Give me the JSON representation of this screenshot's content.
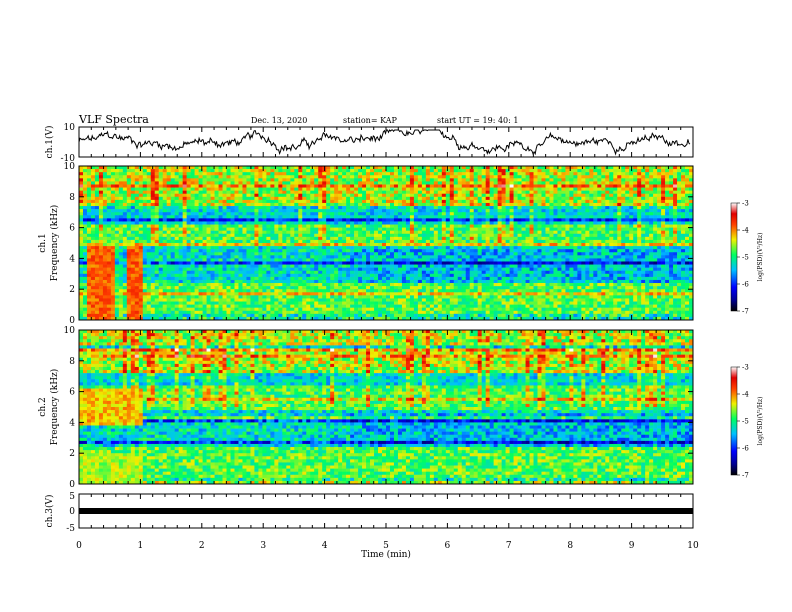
{
  "header": {
    "title": "VLF Spectra",
    "date": "Dec. 13, 2020",
    "station": "station= KAP",
    "start_ut": "start  UT  =   19: 40: 1"
  },
  "chart_data": [
    {
      "type": "line",
      "panel": "ch1-waveform",
      "ylabel": "ch.1(V)",
      "ylim": [
        -10,
        10
      ],
      "yticks": [
        "10",
        "-10"
      ],
      "xlim": [
        0,
        10
      ]
    },
    {
      "type": "heatmap",
      "panel": "ch1-spectrogram",
      "ylabel": "ch.1",
      "ylabel2": "Frequency  (kHz)",
      "ylim": [
        0,
        10
      ],
      "yticks": [
        "0",
        "2",
        "4",
        "6",
        "8",
        "10"
      ],
      "xlim": [
        0,
        10
      ],
      "colorbar": {
        "label": "log(PSD)(V²/Hz)",
        "range": [
          -7,
          -3
        ],
        "ticks": [
          "-3",
          "-4",
          "-5",
          "-6",
          "-7"
        ]
      }
    },
    {
      "type": "heatmap",
      "panel": "ch2-spectrogram",
      "ylabel": "ch.2",
      "ylabel2": "Frequency  (kHz)",
      "ylim": [
        0,
        10
      ],
      "yticks": [
        "0",
        "2",
        "4",
        "6",
        "8",
        "10"
      ],
      "xlim": [
        0,
        10
      ],
      "colorbar": {
        "label": "log(PSD)(V²/Hz)",
        "range": [
          -7,
          -3
        ],
        "ticks": [
          "-3",
          "-4",
          "-5",
          "-6",
          "-7"
        ]
      }
    },
    {
      "type": "line",
      "panel": "ch3-waveform",
      "ylabel": "ch.3(V)",
      "ylim": [
        -5,
        5
      ],
      "yticks": [
        "5",
        "0",
        "-5"
      ],
      "xlim": [
        0,
        10
      ],
      "xlabel": "Time  (min)",
      "xticks": [
        "0",
        "1",
        "2",
        "3",
        "4",
        "5",
        "6",
        "7",
        "8",
        "9",
        "10"
      ]
    }
  ]
}
